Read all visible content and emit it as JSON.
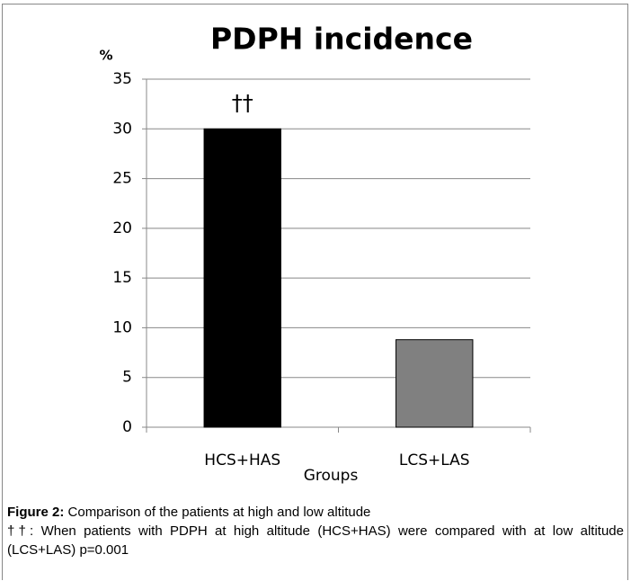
{
  "chart_data": {
    "type": "bar",
    "title": "PDPH incidence",
    "y_label": "%",
    "x_label": "Groups",
    "categories": [
      "HCS+HAS",
      "LCS+LAS"
    ],
    "values": [
      30,
      8.8
    ],
    "colors": [
      "#000000",
      "#808080"
    ],
    "annotations": [
      {
        "category": 0,
        "text": "††"
      }
    ],
    "ylim": [
      0,
      35
    ],
    "yticks": [
      0,
      5,
      10,
      15,
      20,
      25,
      30,
      35
    ],
    "grid": true,
    "caption": {
      "label": "Figure 2:",
      "text": "Comparison of the patients at high and low altitude",
      "note": "††: When patients with PDPH at high altitude (HCS+HAS) were compared with at low altitude (LCS+LAS) p=0.001"
    }
  }
}
